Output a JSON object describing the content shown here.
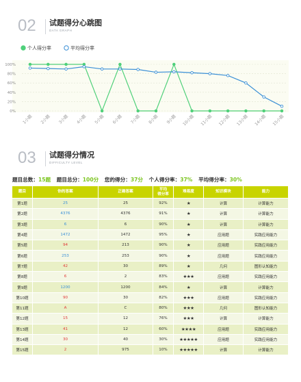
{
  "section2": {
    "num": "02",
    "title": "试题得分心跳图",
    "subtitle": "DATA GRAPH"
  },
  "section3": {
    "num": "03",
    "title": "试题得分情况",
    "subtitle": "DIFFICULTY LEVEL"
  },
  "chart_data": {
    "type": "line",
    "categories": [
      "1小题",
      "2小题",
      "3小题",
      "4小题",
      "5小题",
      "6小题",
      "7小题",
      "8小题",
      "9小题",
      "10小题",
      "11小题",
      "12小题",
      "13小题",
      "14小题",
      "15小题"
    ],
    "series": [
      {
        "name": "个人得分率",
        "color": "#4fd07a",
        "values": [
          100,
          100,
          100,
          100,
          0,
          100,
          0,
          0,
          100,
          0,
          0,
          0,
          0,
          0,
          0
        ]
      },
      {
        "name": "平均得分率",
        "color": "#3a8fd6",
        "values": [
          92,
          91,
          90,
          95,
          90,
          90,
          89,
          83,
          84,
          82,
          80,
          76,
          60,
          30,
          10
        ]
      }
    ],
    "yticks": [
      "0%",
      "20%",
      "40%",
      "60%",
      "80%",
      "100%"
    ],
    "ylim": [
      0,
      100
    ],
    "grid": true,
    "legend": "top-left"
  },
  "summary": {
    "count_label": "题目总数：",
    "count_value": "15题",
    "total_label": "题目总分：",
    "total_value": "100分",
    "score_label": "您的得分：",
    "score_value": "37分",
    "rate_label": "个人得分率：",
    "rate_value": "37%",
    "avg_label": "平均得分率：",
    "avg_value": "30%"
  },
  "table": {
    "headers": [
      "题目",
      "你的答案",
      "正确答案",
      "平均\n得分率",
      "难易度",
      "知识模块",
      "能力"
    ],
    "rows": [
      [
        "第1题",
        "25",
        "25",
        "92%",
        1,
        "计算",
        "计算能力",
        "blue"
      ],
      [
        "第2题",
        "4376",
        "4376",
        "91%",
        1,
        "计算",
        "计算能力",
        "blue"
      ],
      [
        "第3题",
        "6",
        "6",
        "90%",
        1,
        "计算",
        "计算能力",
        "blue"
      ],
      [
        "第4题",
        "1472",
        "1472",
        "95%",
        1,
        "应用题",
        "实践应用能力",
        "blue"
      ],
      [
        "第5题",
        "94",
        "213",
        "90%",
        1,
        "应用题",
        "实践应用能力",
        "red"
      ],
      [
        "第6题",
        "253",
        "253",
        "90%",
        1,
        "应用题",
        "实践应用能力",
        "blue"
      ],
      [
        "第7题",
        "42",
        "30",
        "89%",
        1,
        "几何",
        "图形认知能力",
        "red"
      ],
      [
        "第8题",
        "6",
        "2",
        "83%",
        3,
        "应用题",
        "实践应用能力",
        "red"
      ],
      [
        "第9题",
        "1200",
        "1200",
        "84%",
        1,
        "计算",
        "计算能力",
        "blue"
      ],
      [
        "第10题",
        "90",
        "30",
        "82%",
        3,
        "应用题",
        "实践应用能力",
        "red"
      ],
      [
        "第11题",
        "A",
        "C",
        "80%",
        3,
        "几何",
        "图形认知能力",
        "red"
      ],
      [
        "第12题",
        "15",
        "12",
        "76%",
        3,
        "计算",
        "计算能力",
        "red"
      ],
      [
        "第13题",
        "41",
        "12",
        "60%",
        4,
        "应用题",
        "实践应用能力",
        "red"
      ],
      [
        "第14题",
        "30",
        "40",
        "30%",
        5,
        "应用题",
        "实践应用能力",
        "red"
      ],
      [
        "第15题",
        "2",
        "975",
        "10%",
        5,
        "计算",
        "计算能力",
        "red"
      ]
    ]
  }
}
